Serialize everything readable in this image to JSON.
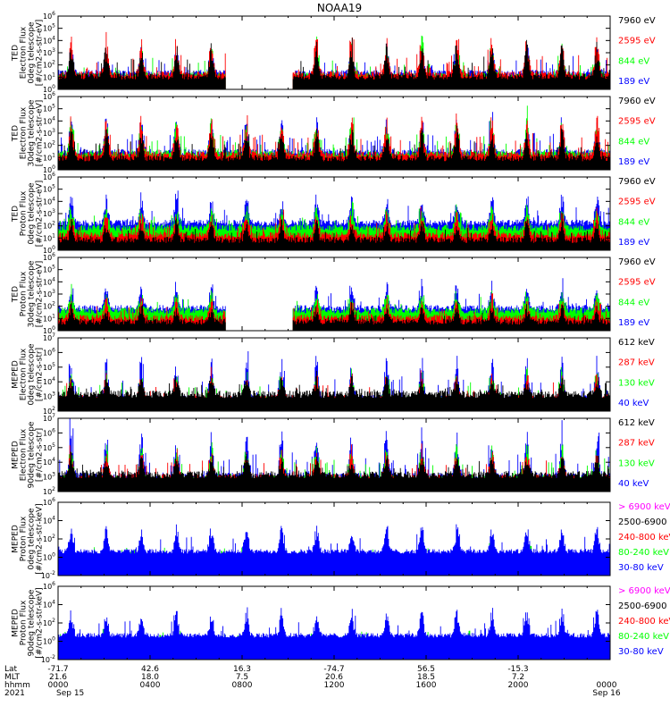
{
  "title": "NOAA19",
  "colors": {
    "black": "#000000",
    "red": "#ff0000",
    "green": "#00ff00",
    "blue": "#0000ff",
    "magenta": "#ff00ff"
  },
  "chart_data": [
    {
      "type": "line",
      "name": "ted-electron-0deg",
      "ylabel_lines": [
        "TED",
        "Electron Flux",
        "0deg telescope",
        "[#/cm2-s-str-eV]"
      ],
      "ylim": [
        1,
        1000000
      ],
      "yscale": "log",
      "ytick_labels": [
        "10^0",
        "10^1",
        "10^2",
        "10^3",
        "10^4",
        "10^5",
        "10^6"
      ],
      "series": [
        {
          "name": "7960 eV",
          "color": "#000000"
        },
        {
          "name": "2595 eV",
          "color": "#ff0000"
        },
        {
          "name": "844 eV",
          "color": "#00ff00"
        },
        {
          "name": "189 eV",
          "color": "#0000ff"
        }
      ],
      "data_gaps_hours": [
        [
          7.3,
          10.2
        ]
      ]
    },
    {
      "type": "line",
      "name": "ted-electron-30deg",
      "ylabel_lines": [
        "TED",
        "Electron Flux",
        "30deg telescope",
        "[#/cm2-s-str-eV]"
      ],
      "ylim": [
        1,
        1000000
      ],
      "yscale": "log",
      "ytick_labels": [
        "10^0",
        "10^1",
        "10^2",
        "10^3",
        "10^4",
        "10^5",
        "10^6"
      ],
      "series": [
        {
          "name": "7960 eV",
          "color": "#000000"
        },
        {
          "name": "2595 eV",
          "color": "#ff0000"
        },
        {
          "name": "844 eV",
          "color": "#00ff00"
        },
        {
          "name": "189 eV",
          "color": "#0000ff"
        }
      ]
    },
    {
      "type": "line",
      "name": "ted-proton-0deg",
      "ylabel_lines": [
        "TED",
        "Proton Flux",
        "0deg telescope",
        "[#/cm2-s-str-eV]"
      ],
      "ylim": [
        1,
        1000000
      ],
      "yscale": "log",
      "ytick_labels": [
        "10^0",
        "10^1",
        "10^2",
        "10^3",
        "10^4",
        "10^5",
        "10^6"
      ],
      "series": [
        {
          "name": "7960 eV",
          "color": "#000000"
        },
        {
          "name": "2595 eV",
          "color": "#ff0000"
        },
        {
          "name": "844 eV",
          "color": "#00ff00"
        },
        {
          "name": "189 eV",
          "color": "#0000ff"
        }
      ]
    },
    {
      "type": "line",
      "name": "ted-proton-30deg",
      "ylabel_lines": [
        "TED",
        "Proton Flux",
        "30deg telescope",
        "[#/cm2-s-str-eV]"
      ],
      "ylim": [
        1,
        1000000
      ],
      "yscale": "log",
      "ytick_labels": [
        "10^0",
        "10^1",
        "10^2",
        "10^3",
        "10^4",
        "10^5",
        "10^6"
      ],
      "series": [
        {
          "name": "7960 eV",
          "color": "#000000"
        },
        {
          "name": "2595 eV",
          "color": "#ff0000"
        },
        {
          "name": "844 eV",
          "color": "#00ff00"
        },
        {
          "name": "189 eV",
          "color": "#0000ff"
        }
      ],
      "data_gaps_hours": [
        [
          7.3,
          10.2
        ]
      ]
    },
    {
      "type": "line",
      "name": "meped-electron-0deg",
      "ylabel_lines": [
        "MEPED",
        "Electron Flux",
        "0deg telescope",
        "[#/cm2-s-str]"
      ],
      "ylim": [
        100,
        10000000
      ],
      "yscale": "log",
      "ytick_labels": [
        "10^2",
        "10^3",
        "10^4",
        "10^5",
        "10^6",
        "10^7"
      ],
      "series": [
        {
          "name": "612 keV",
          "color": "#000000"
        },
        {
          "name": "287 keV",
          "color": "#ff0000"
        },
        {
          "name": "130 keV",
          "color": "#00ff00"
        },
        {
          "name": "40 keV",
          "color": "#0000ff"
        }
      ]
    },
    {
      "type": "line",
      "name": "meped-electron-90deg",
      "ylabel_lines": [
        "MEPED",
        "Electron Flux",
        "90deg telescope",
        "[#/cm2-s-str]"
      ],
      "ylim": [
        100,
        10000000
      ],
      "yscale": "log",
      "ytick_labels": [
        "10^2",
        "10^3",
        "10^4",
        "10^5",
        "10^6",
        "10^7"
      ],
      "series": [
        {
          "name": "612 keV",
          "color": "#000000"
        },
        {
          "name": "287 keV",
          "color": "#ff0000"
        },
        {
          "name": "130 keV",
          "color": "#00ff00"
        },
        {
          "name": "40 keV",
          "color": "#0000ff"
        }
      ]
    },
    {
      "type": "line",
      "name": "meped-proton-0deg",
      "ylabel_lines": [
        "MEPED",
        "Proton Flux",
        "0deg telescope",
        "[#/cm2-s-str-keV]"
      ],
      "ylim": [
        0.01,
        1000000
      ],
      "yscale": "log",
      "ytick_labels": [
        "10^-2",
        "10^0",
        "10^2",
        "10^4",
        "10^6"
      ],
      "series": [
        {
          "name": "> 6900 keV",
          "color": "#ff00ff"
        },
        {
          "name": "2500-6900",
          "color": "#000000"
        },
        {
          "name": "240-800 keV",
          "color": "#ff0000"
        },
        {
          "name": "80-240 keV",
          "color": "#00ff00"
        },
        {
          "name": "30-80 keV",
          "color": "#0000ff"
        }
      ]
    },
    {
      "type": "line",
      "name": "meped-proton-90deg",
      "ylabel_lines": [
        "MEPED",
        "Proton Flux",
        "90deg telescope",
        "[#/cm2-s-str-keV]"
      ],
      "ylim": [
        0.01,
        1000000
      ],
      "yscale": "log",
      "ytick_labels": [
        "10^-2",
        "10^0",
        "10^2",
        "10^4",
        "10^6"
      ],
      "series": [
        {
          "name": "> 6900 keV",
          "color": "#ff00ff"
        },
        {
          "name": "2500-6900",
          "color": "#000000"
        },
        {
          "name": "240-800 keV",
          "color": "#ff0000"
        },
        {
          "name": "80-240 keV",
          "color": "#00ff00"
        },
        {
          "name": "30-80 keV",
          "color": "#0000ff"
        }
      ]
    }
  ],
  "x_axis": {
    "range_hours": [
      0,
      24
    ],
    "row_labels": [
      "Lat",
      "MLT",
      "hhmm",
      "2021"
    ],
    "ticks": [
      {
        "hour": 0,
        "lat": "-71.7",
        "mlt": "21.6",
        "hhmm": "0000",
        "date": "Sep 15"
      },
      {
        "hour": 4,
        "lat": "42.6",
        "mlt": "18.0",
        "hhmm": "0400",
        "date": ""
      },
      {
        "hour": 8,
        "lat": "16.3",
        "mlt": "7.5",
        "hhmm": "0800",
        "date": ""
      },
      {
        "hour": 12,
        "lat": "-74.7",
        "mlt": "20.6",
        "hhmm": "1200",
        "date": ""
      },
      {
        "hour": 16,
        "lat": "56.5",
        "mlt": "18.5",
        "hhmm": "1600",
        "date": ""
      },
      {
        "hour": 20,
        "lat": "-15.3",
        "mlt": "7.2",
        "hhmm": "2000",
        "date": ""
      },
      {
        "hour": 24,
        "lat": "",
        "mlt": "",
        "hhmm": "0000",
        "date": "Sep 16"
      }
    ]
  }
}
